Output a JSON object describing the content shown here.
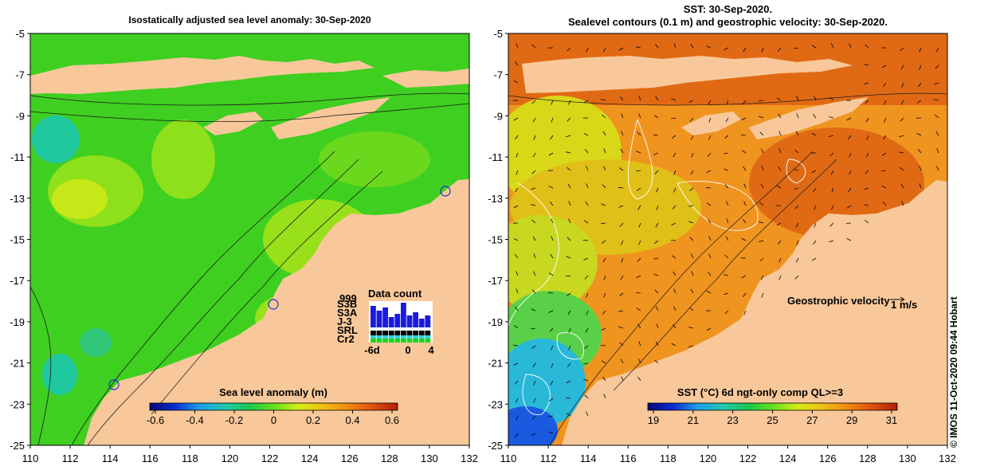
{
  "date": "30-Sep-2020",
  "panels": {
    "left": {
      "title": "Isostatically adjusted sea level anomaly: 30-Sep-2020",
      "colorbar": {
        "label": "Sea level anomaly (m)",
        "ticks": [
          "-0.6",
          "-0.4",
          "-0.2",
          "0",
          "0.2",
          "0.4",
          "0.6"
        ],
        "colors": [
          "#08087a",
          "#0a2bd0",
          "#1e9ee8",
          "#20c8b0",
          "#18c850",
          "#64e01e",
          "#d4ee14",
          "#f0c014",
          "#f08a10",
          "#e05010",
          "#b01e0a"
        ]
      },
      "inset": {
        "title": "Data count",
        "satellites": [
          "S3B",
          "S3A",
          "J-3",
          "SRL",
          "Cr2"
        ],
        "count_label": "999",
        "x_ticks": [
          "-6d",
          "0",
          "4"
        ]
      }
    },
    "right": {
      "title_line1": "SST: 30-Sep-2020.",
      "title_line2": "Sealevel contours (0.1 m) and geostrophic velocity: 30-Sep-2020.",
      "velocity_legend": "Geostrophic velocity",
      "velocity_scale": "1 m/s",
      "colorbar": {
        "label": "SST (°C) 6d ngt-only comp QL>=3",
        "ticks": [
          "19",
          "21",
          "23",
          "25",
          "27",
          "29",
          "31"
        ],
        "colors": [
          "#08087a",
          "#0a2bd0",
          "#1e9ee8",
          "#20c8b0",
          "#18c850",
          "#64e01e",
          "#d4ee14",
          "#f0c014",
          "#f08a10",
          "#e05010",
          "#b01e0a"
        ]
      }
    }
  },
  "axes": {
    "x_ticks": [
      "110",
      "112",
      "114",
      "116",
      "118",
      "120",
      "122",
      "124",
      "126",
      "128",
      "130",
      "132"
    ],
    "y_ticks": [
      "-5",
      "-7",
      "-9",
      "-11",
      "-13",
      "-15",
      "-17",
      "-19",
      "-21",
      "-23",
      "-25"
    ]
  },
  "colors": {
    "land": "#f9c89a",
    "ocean_green": "#3fcf20",
    "ocean_lightgreen": "#8ee01a",
    "ocean_teal": "#20c8a0",
    "sst_orange": "#f09420",
    "sst_darkorange": "#e06a14",
    "sst_yellow": "#d8d818",
    "sst_cyan": "#2ab8d8"
  },
  "credit": "© IMOS 11-Oct-2020 09:44 Hobart"
}
